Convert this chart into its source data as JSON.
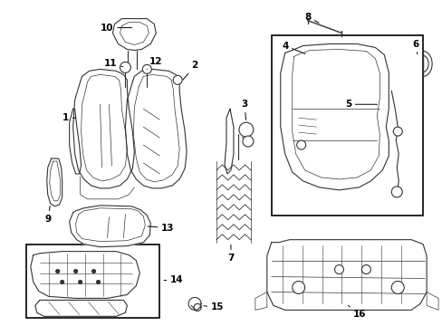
{
  "bg_color": "#ffffff",
  "line_color": "#333333",
  "label_color": "#000000",
  "box_color": "#000000",
  "lw": 0.8,
  "lw_thin": 0.5,
  "lw_thick": 1.0
}
